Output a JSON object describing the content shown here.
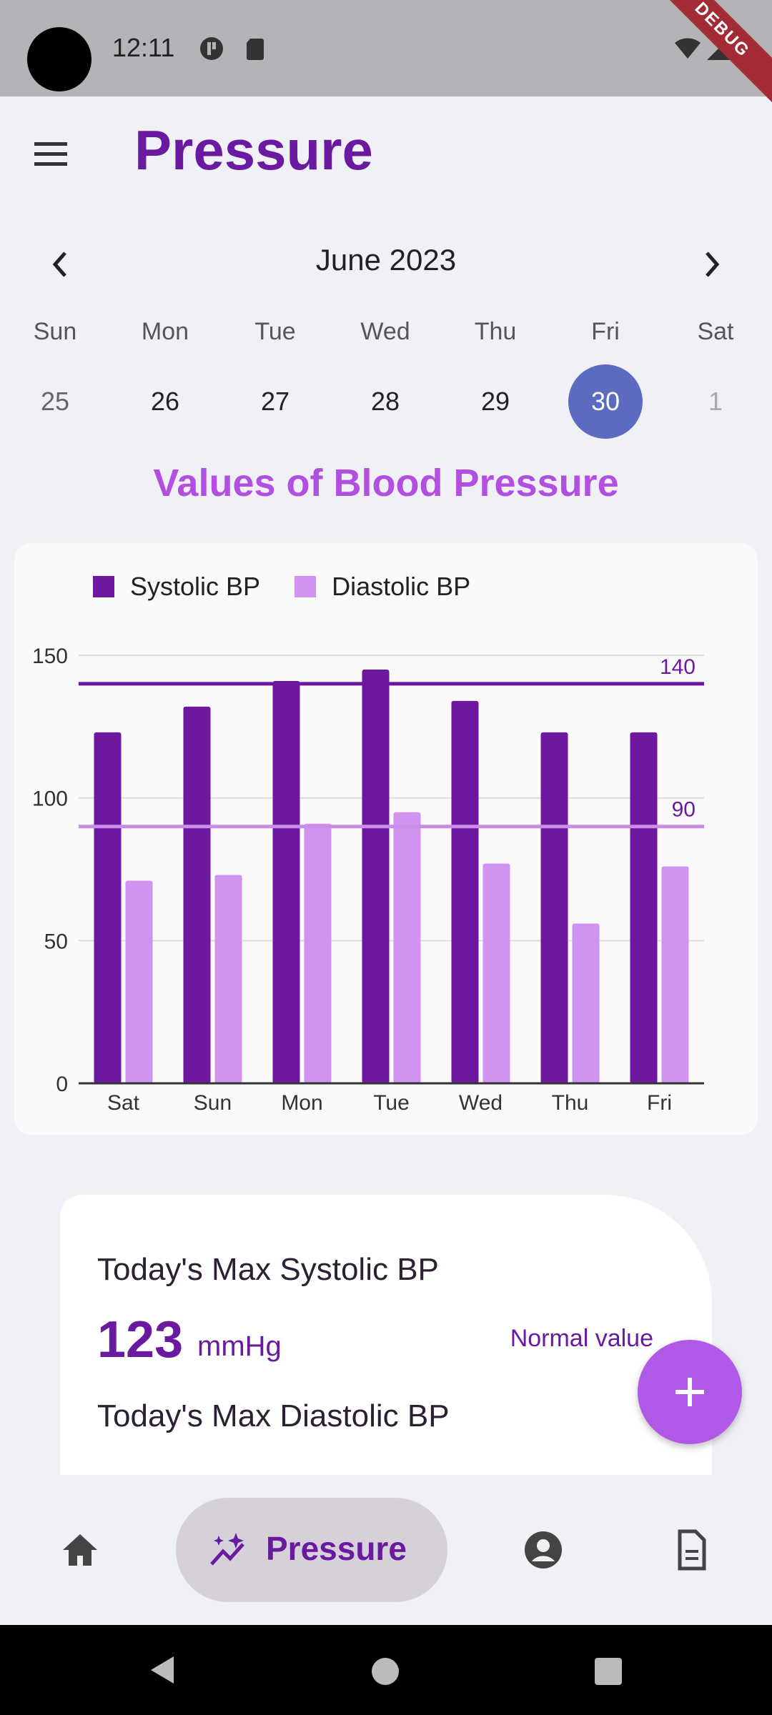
{
  "status_bar": {
    "time": "12:11",
    "debug_label": "DEBUG"
  },
  "app_bar": {
    "title": "Pressure"
  },
  "calendar": {
    "month_label": "June 2023",
    "weekdays": [
      "Sun",
      "Mon",
      "Tue",
      "Wed",
      "Thu",
      "Fri",
      "Sat"
    ],
    "dates": [
      "25",
      "26",
      "27",
      "28",
      "29",
      "30",
      "1"
    ],
    "selected_date": "30"
  },
  "section_title": "Values of Blood Pressure",
  "chart_data": {
    "type": "bar",
    "categories": [
      "Sat",
      "Sun",
      "Mon",
      "Tue",
      "Wed",
      "Thu",
      "Fri"
    ],
    "series": [
      {
        "name": "Systolic BP",
        "color": "#6e17a0",
        "values": [
          123,
          132,
          141,
          145,
          134,
          123,
          123
        ]
      },
      {
        "name": "Diastolic BP",
        "color": "#d193f0",
        "values": [
          71,
          73,
          91,
          95,
          77,
          56,
          76
        ]
      }
    ],
    "yticks": [
      0,
      50,
      100,
      150
    ],
    "ylim": [
      0,
      150
    ],
    "reference_lines": [
      {
        "value": 140,
        "label": "140",
        "color": "#6e17a0"
      },
      {
        "value": 90,
        "label": "90",
        "color": "#c98ce8"
      }
    ],
    "legend_position": "top-left",
    "grid": true
  },
  "today": {
    "systolic_label": "Today's Max Systolic BP",
    "systolic_value": "123",
    "systolic_unit": "mmHg",
    "systolic_status": "Normal value",
    "diastolic_label": "Today's Max Diastolic BP"
  },
  "fab": {
    "icon": "plus-icon"
  },
  "bottom_nav": {
    "items": [
      {
        "name": "home",
        "icon": "home-icon"
      },
      {
        "name": "pressure",
        "icon": "sparkle-chart-icon",
        "label": "Pressure",
        "active": true
      },
      {
        "name": "profile",
        "icon": "account-circle-icon"
      },
      {
        "name": "report",
        "icon": "document-icon"
      }
    ]
  }
}
